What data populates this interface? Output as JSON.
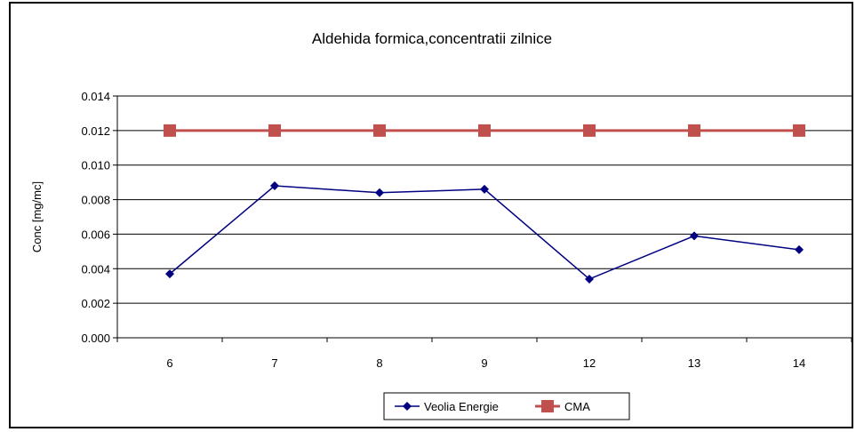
{
  "chart_data": {
    "type": "line",
    "title": "Aldehida formica,concentratii zilnice",
    "xlabel": "",
    "ylabel": "Conc [mg/mc]",
    "categories": [
      "6",
      "7",
      "8",
      "9",
      "12",
      "13",
      "14"
    ],
    "ylim": [
      0,
      0.014
    ],
    "yticks": [
      "0.000",
      "0.002",
      "0.004",
      "0.006",
      "0.008",
      "0.010",
      "0.012",
      "0.014"
    ],
    "grid": true,
    "legend": "bottom",
    "series": [
      {
        "name": "Veolia Energie",
        "values": [
          0.0037,
          0.0088,
          0.0084,
          0.0086,
          0.0034,
          0.0059,
          0.0051
        ],
        "color": "#000080",
        "marker": "diamond"
      },
      {
        "name": "CMA",
        "values": [
          0.012,
          0.012,
          0.012,
          0.012,
          0.012,
          0.012,
          0.012
        ],
        "color": "#c0504d",
        "marker": "square"
      }
    ]
  }
}
